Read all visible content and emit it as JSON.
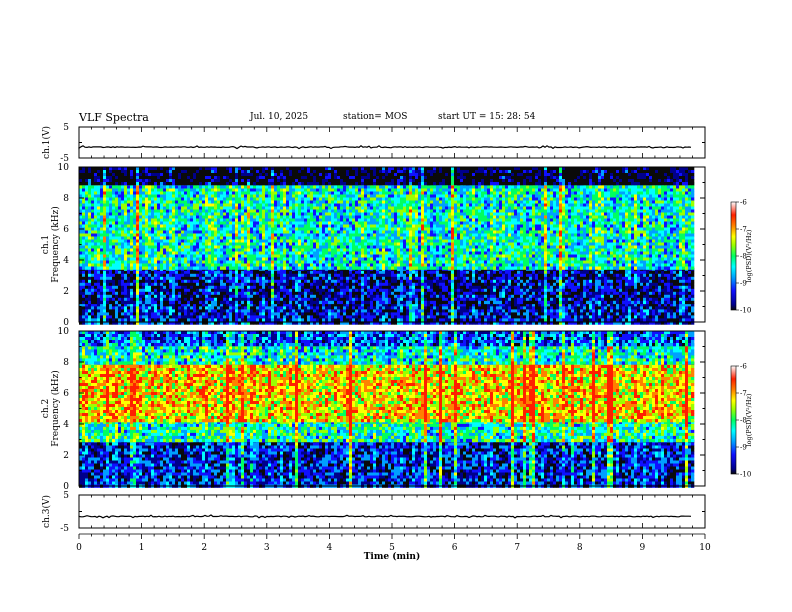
{
  "header": {
    "title": "VLF Spectra",
    "date": "Jul. 10, 2025",
    "station": "station= MOS",
    "start": "start UT =  15: 28: 54"
  },
  "colors": {
    "spectrogram_colormap": [
      "#0a0a0a",
      "#00008b",
      "#1010ff",
      "#00a0ff",
      "#00ffff",
      "#00ff60",
      "#9aff00",
      "#ffff00",
      "#ff8000",
      "#ff2000",
      "#ffffff"
    ],
    "trace": "#000000",
    "axes": "#000000"
  },
  "chart_data": [
    {
      "type": "line",
      "panel": "ch1-waveform",
      "ylabel": "ch.1(V)",
      "ylim": [
        -5,
        5
      ],
      "yticks": [
        "5",
        "-5"
      ],
      "series": [
        {
          "x": [
            0,
            9.8
          ],
          "values": [
            -1.5,
            -1.5
          ]
        }
      ]
    },
    {
      "type": "heatmap",
      "panel": "ch1-spectrogram",
      "ylabel_top": "ch.1",
      "ylabel": "Frequency (kHz)",
      "ylim": [
        0,
        10
      ],
      "yticks": [
        "0",
        "2",
        "4",
        "6",
        "8",
        "10"
      ],
      "xlim": [
        0,
        9.8
      ],
      "colorbar": {
        "label": "log(PSD)(V²/Hz)",
        "ticks": [
          "-6",
          "-7",
          "-8",
          "-9",
          "-10"
        ],
        "range": [
          -10,
          -6
        ]
      },
      "bands": [
        {
          "fmin": 0,
          "fmax": 1.2,
          "level": -9.3
        },
        {
          "fmin": 1.2,
          "fmax": 3.5,
          "level": -9.4
        },
        {
          "fmin": 3.5,
          "fmax": 9.0,
          "level": -8.2
        },
        {
          "fmin": 9.0,
          "fmax": 10,
          "level": -9.9
        }
      ]
    },
    {
      "type": "heatmap",
      "panel": "ch2-spectrogram",
      "ylabel_top": "ch.2",
      "ylabel": "Frequency (kHz)",
      "ylim": [
        0,
        10
      ],
      "yticks": [
        "0",
        "2",
        "4",
        "6",
        "8",
        "10"
      ],
      "xlim": [
        0,
        9.8
      ],
      "colorbar": {
        "label": "log(PSD)(V²/Hz)",
        "ticks": [
          "-6",
          "-7",
          "-8",
          "-9",
          "-10"
        ],
        "range": [
          -10,
          -6
        ]
      },
      "bands": [
        {
          "fmin": 0,
          "fmax": 3.0,
          "level": -9.2
        },
        {
          "fmin": 3.0,
          "fmax": 4.2,
          "level": -8.1
        },
        {
          "fmin": 4.2,
          "fmax": 8.0,
          "level": -7.0
        },
        {
          "fmin": 8.0,
          "fmax": 9.2,
          "level": -8.2
        },
        {
          "fmin": 9.2,
          "fmax": 10,
          "level": -8.9
        }
      ]
    },
    {
      "type": "line",
      "panel": "ch3-waveform",
      "ylabel": "ch.3(V)",
      "ylim": [
        -5,
        5
      ],
      "yticks": [
        "5",
        "-5"
      ],
      "xlabel": "Time (min)",
      "xticks": [
        "0",
        "1",
        "2",
        "3",
        "4",
        "5",
        "6",
        "7",
        "8",
        "9",
        "10"
      ],
      "xlim": [
        0,
        10
      ],
      "series": [
        {
          "x": [
            0,
            9.8
          ],
          "values": [
            -1.5,
            -1.5
          ]
        }
      ]
    }
  ]
}
